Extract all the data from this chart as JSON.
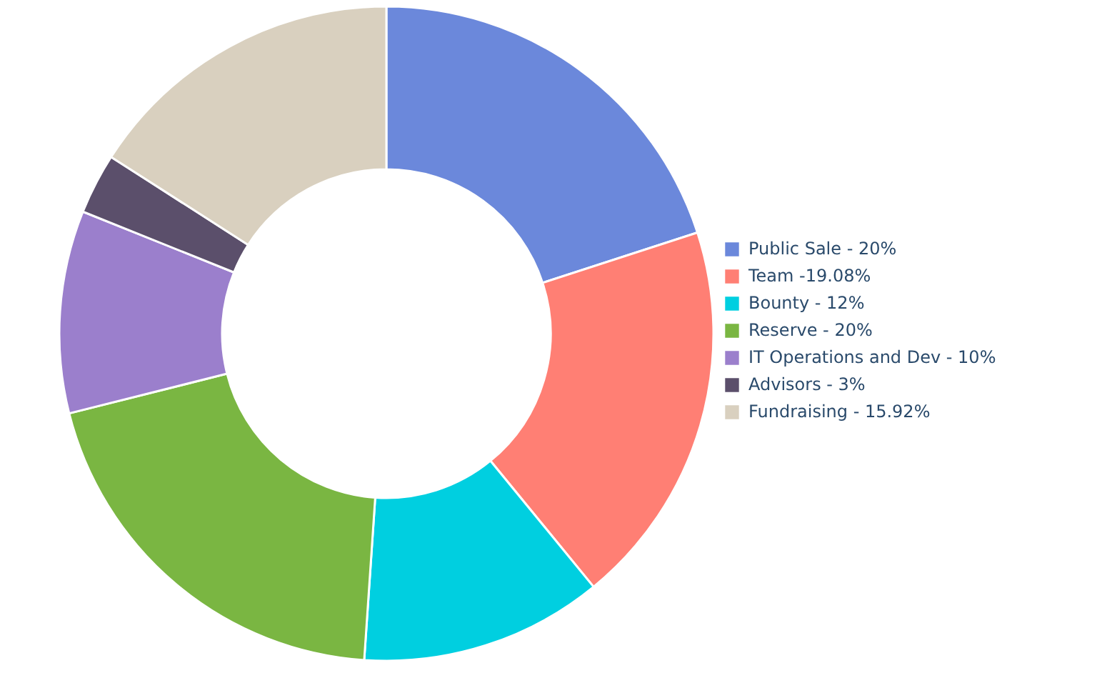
{
  "chart_data": {
    "type": "donut",
    "categories": [
      "Public Sale - 20%",
      "Team -19.08%",
      "Bounty - 12%",
      "Reserve - 20%",
      "IT Operations and Dev - 10%",
      "Advisors - 3%",
      "Fundraising - 15.92%"
    ],
    "values": [
      20,
      19.08,
      12,
      20,
      10,
      3,
      15.92
    ],
    "colors": [
      "#6b88db",
      "#ff7f74",
      "#00cfe0",
      "#7ab642",
      "#9b7fcc",
      "#5b4f6b",
      "#d9d0bf"
    ],
    "legend": "right"
  }
}
